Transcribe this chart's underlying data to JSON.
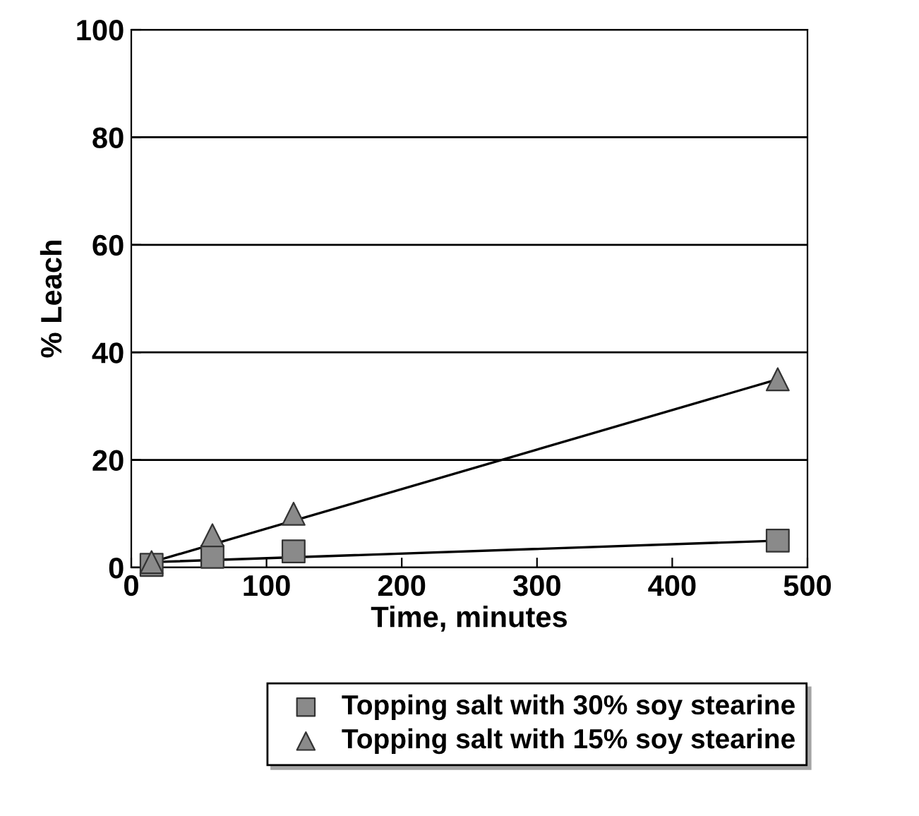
{
  "chart_data": {
    "type": "scatter",
    "xlabel": "Time, minutes",
    "ylabel": "% Leach",
    "xlim": [
      0,
      500
    ],
    "xticks": [
      0,
      100,
      200,
      300,
      400,
      500
    ],
    "ylim": [
      0,
      100
    ],
    "yticks": [
      0,
      20,
      40,
      60,
      80,
      100
    ],
    "grid": "y",
    "legend": "bottom",
    "series": [
      {
        "name": "Topping salt with 30% soy stearine",
        "color": "#8a8a8a",
        "marker": "square",
        "x": [
          15,
          60,
          120,
          478
        ],
        "values": [
          0.5,
          2,
          3,
          5
        ]
      },
      {
        "name": "Topping salt with 15% soy stearine",
        "color": "#8a8a8a",
        "marker": "triangle",
        "x": [
          15,
          60,
          120,
          478
        ],
        "values": [
          1,
          6,
          10,
          35
        ]
      },
      {
        "type": "line",
        "color": "#000000",
        "marker": "none",
        "x": [
          15,
          478
        ],
        "values": [
          1,
          5
        ]
      },
      {
        "type": "line",
        "color": "#000000",
        "marker": "none",
        "x": [
          15,
          478
        ],
        "values": [
          1,
          35
        ]
      }
    ]
  }
}
